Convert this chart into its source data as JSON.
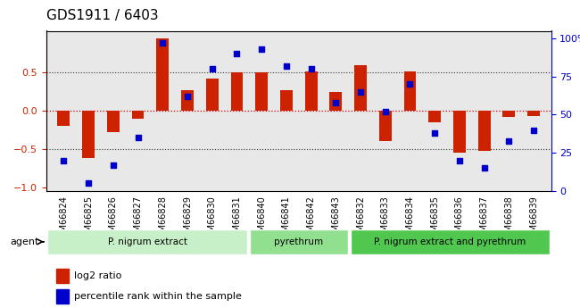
{
  "title": "GDS1911 / 6403",
  "samples": [
    "GSM66824",
    "GSM66825",
    "GSM66826",
    "GSM66827",
    "GSM66828",
    "GSM66829",
    "GSM66830",
    "GSM66831",
    "GSM66840",
    "GSM66841",
    "GSM66842",
    "GSM66843",
    "GSM66832",
    "GSM66833",
    "GSM66834",
    "GSM66835",
    "GSM66836",
    "GSM66837",
    "GSM66838",
    "GSM66839"
  ],
  "log2_ratio": [
    -0.2,
    -0.62,
    -0.28,
    -0.1,
    0.95,
    0.27,
    0.42,
    0.5,
    0.5,
    0.27,
    0.52,
    0.25,
    0.6,
    -0.4,
    0.52,
    -0.15,
    -0.55,
    -0.52,
    -0.08,
    -0.07
  ],
  "percentile": [
    20,
    5,
    17,
    35,
    97,
    62,
    80,
    90,
    93,
    82,
    80,
    58,
    65,
    52,
    70,
    38,
    20,
    15,
    33,
    40
  ],
  "groups": [
    {
      "label": "P. nigrum extract",
      "start": 0,
      "end": 8,
      "color": "#c8f0c8"
    },
    {
      "label": "pyrethrum",
      "start": 8,
      "end": 12,
      "color": "#90e090"
    },
    {
      "label": "P. nigrum extract and pyrethrum",
      "start": 12,
      "end": 20,
      "color": "#50c850"
    }
  ],
  "bar_color": "#cc2200",
  "dot_color": "#0000cc",
  "zero_line_color": "#cc0000",
  "dotted_line_color": "#333333",
  "ylim_left": [
    -1.05,
    1.05
  ],
  "ylim_right": [
    0,
    105
  ],
  "yticks_left": [
    -1,
    -0.5,
    0,
    0.5
  ],
  "yticks_right": [
    0,
    25,
    50,
    75,
    100
  ],
  "hlines": [
    0.5,
    -0.5
  ],
  "bg_color": "#e8e8e8",
  "legend_bar_label": "log2 ratio",
  "legend_dot_label": "percentile rank within the sample"
}
